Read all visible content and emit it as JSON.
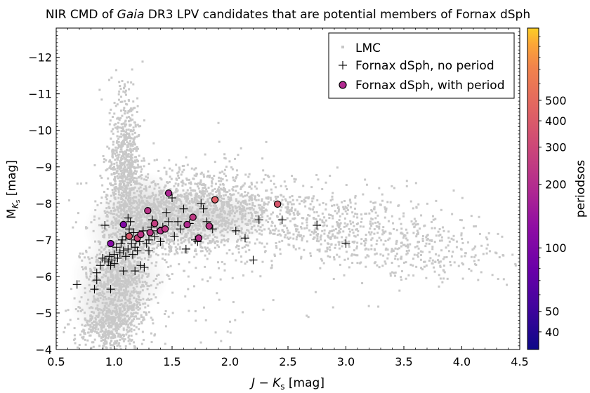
{
  "chart_data": {
    "type": "scatter",
    "title_pre": "NIR CMD of ",
    "title_italic": "Gaia",
    "title_post": " DR3 LPV candidates that are potential members of Fornax dSph",
    "xlabel": "J − K_s [mag]",
    "xlabel_main": "J − K",
    "xlabel_sub": "s",
    "xlabel_unit": " [mag]",
    "ylabel_main": "M",
    "ylabel_sub": "K",
    "ylabel_subsub": "s",
    "ylabel_unit": " [mag]",
    "xlim": [
      0.5,
      4.5
    ],
    "ylim": [
      -4,
      -12.8
    ],
    "y_inverted": true,
    "x_ticks": [
      "0.5",
      "1.0",
      "1.5",
      "2.0",
      "2.5",
      "3.0",
      "3.5",
      "4.0",
      "4.5"
    ],
    "y_ticks": [
      "−4",
      "−5",
      "−6",
      "−7",
      "−8",
      "−9",
      "−10",
      "−11",
      "−12"
    ],
    "grid": false,
    "legend_position": "top-right",
    "series": [
      {
        "name": "LMC",
        "marker": "square-dot",
        "color": "#c8c8c8",
        "description_density": "dense background cloud"
      },
      {
        "name": "Fornax dSph, no period",
        "marker": "plus",
        "color": "#000000",
        "points": [
          [
            0.68,
            -5.78
          ],
          [
            0.83,
            -5.65
          ],
          [
            0.85,
            -5.9
          ],
          [
            0.85,
            -6.1
          ],
          [
            0.88,
            -6.3
          ],
          [
            0.9,
            -6.5
          ],
          [
            0.92,
            -6.45
          ],
          [
            0.95,
            -6.4
          ],
          [
            0.96,
            -6.55
          ],
          [
            0.97,
            -6.3
          ],
          [
            0.98,
            -6.45
          ],
          [
            1.0,
            -6.6
          ],
          [
            1.0,
            -6.35
          ],
          [
            1.02,
            -6.8
          ],
          [
            1.03,
            -6.5
          ],
          [
            1.05,
            -6.65
          ],
          [
            1.06,
            -6.9
          ],
          [
            1.07,
            -7.0
          ],
          [
            1.08,
            -6.7
          ],
          [
            1.1,
            -7.1
          ],
          [
            1.1,
            -6.55
          ],
          [
            1.12,
            -6.75
          ],
          [
            1.13,
            -7.3
          ],
          [
            1.14,
            -7.5
          ],
          [
            1.15,
            -6.9
          ],
          [
            1.16,
            -6.6
          ],
          [
            1.17,
            -7.2
          ],
          [
            1.18,
            -6.8
          ],
          [
            1.19,
            -7.0
          ],
          [
            1.2,
            -6.7
          ],
          [
            1.22,
            -6.95
          ],
          [
            1.23,
            -6.3
          ],
          [
            1.25,
            -7.25
          ],
          [
            1.26,
            -6.25
          ],
          [
            1.28,
            -6.9
          ],
          [
            1.3,
            -7.0
          ],
          [
            1.32,
            -7.35
          ],
          [
            1.33,
            -7.55
          ],
          [
            1.35,
            -7.1
          ],
          [
            1.37,
            -7.25
          ],
          [
            1.4,
            -6.95
          ],
          [
            1.42,
            -7.35
          ],
          [
            1.45,
            -7.75
          ],
          [
            1.47,
            -7.5
          ],
          [
            1.5,
            -8.15
          ],
          [
            1.52,
            -7.1
          ],
          [
            1.55,
            -7.5
          ],
          [
            1.57,
            -7.3
          ],
          [
            1.6,
            -7.85
          ],
          [
            1.62,
            -6.75
          ],
          [
            1.65,
            -7.45
          ],
          [
            1.7,
            -7.0
          ],
          [
            1.72,
            -6.95
          ],
          [
            1.75,
            -8.0
          ],
          [
            1.77,
            -7.85
          ],
          [
            1.8,
            -7.5
          ],
          [
            1.85,
            -7.3
          ],
          [
            2.05,
            -7.25
          ],
          [
            2.13,
            -7.05
          ],
          [
            2.2,
            -6.45
          ],
          [
            2.25,
            -7.55
          ],
          [
            2.45,
            -7.55
          ],
          [
            2.75,
            -7.4
          ],
          [
            3.0,
            -6.9
          ],
          [
            0.92,
            -7.4
          ],
          [
            0.97,
            -5.65
          ],
          [
            1.08,
            -6.15
          ],
          [
            1.12,
            -7.6
          ],
          [
            1.18,
            -6.15
          ],
          [
            1.3,
            -6.7
          ]
        ]
      },
      {
        "name": "Fornax dSph, with period",
        "marker": "circle",
        "edgecolor": "#000000",
        "points": [
          [
            0.97,
            -6.9,
            110
          ],
          [
            1.08,
            -7.42,
            105
          ],
          [
            1.13,
            -7.1,
            380
          ],
          [
            1.2,
            -7.05,
            290
          ],
          [
            1.23,
            -7.15,
            230
          ],
          [
            1.29,
            -7.8,
            220
          ],
          [
            1.31,
            -7.2,
            230
          ],
          [
            1.35,
            -7.45,
            260
          ],
          [
            1.4,
            -7.25,
            210
          ],
          [
            1.44,
            -7.3,
            240
          ],
          [
            1.47,
            -8.28,
            180
          ],
          [
            1.63,
            -7.42,
            190
          ],
          [
            1.68,
            -7.62,
            240
          ],
          [
            1.73,
            -7.05,
            210
          ],
          [
            1.82,
            -7.38,
            230
          ],
          [
            1.87,
            -8.1,
            420
          ],
          [
            2.41,
            -7.98,
            380
          ]
        ]
      }
    ],
    "colorbar": {
      "label": "periodsos",
      "scale": "log",
      "range": [
        33,
        1100
      ],
      "ticks": [
        "40",
        "50",
        "100",
        "200",
        "300",
        "400",
        "500"
      ],
      "tick_values": [
        40,
        50,
        100,
        200,
        300,
        400,
        500
      ],
      "colormap": "plasma"
    }
  }
}
